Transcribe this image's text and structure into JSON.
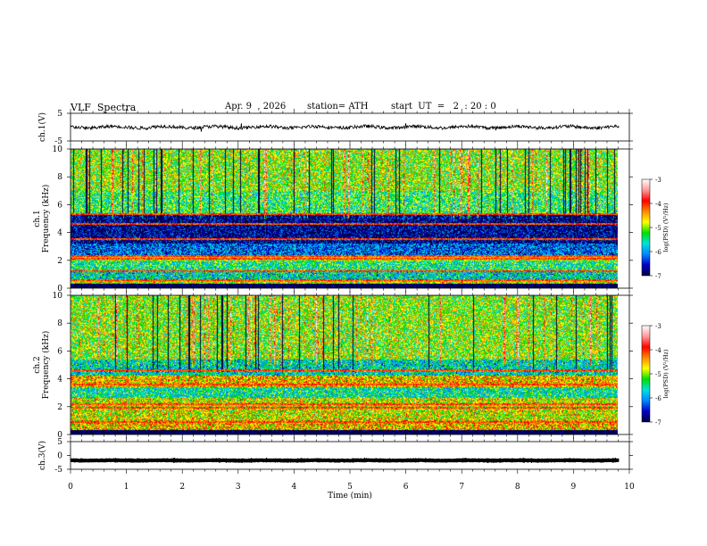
{
  "header": {
    "title": "VLF  Spectra",
    "date": "Apr. 9  , 2026",
    "station": "station= ATH",
    "start_ut": "start  UT  =   2  : 20 : 0"
  },
  "colorbar_scale": {
    "label": "log(PSD) (V²/Hz)",
    "ticks": [
      "-3",
      "-4",
      "-5",
      "-6",
      "-7"
    ],
    "colors": [
      "#ffffff",
      "#ff9a9a",
      "#ff0000",
      "#ff8800",
      "#ffff00",
      "#00e000",
      "#00e0e0",
      "#0088ff",
      "#0000c8",
      "#000040"
    ]
  },
  "chart_data": [
    {
      "type": "line",
      "name": "ch1-waveform",
      "ylabel": "ch.1(V)",
      "ylim": [
        -5,
        5
      ],
      "yticks": [
        "5",
        "-5"
      ],
      "xlim": [
        0,
        10
      ],
      "approx_mean": 0.0,
      "approx_amplitude": 0.6
    },
    {
      "type": "heatmap",
      "name": "ch1-spectrogram",
      "ylabel": "ch.1\nFrequency (kHz)",
      "ylabel_line1": "ch.1",
      "ylabel_line2": "Frequency (kHz)",
      "ylim": [
        0,
        10
      ],
      "yticks": [
        "0",
        "2",
        "4",
        "6",
        "8",
        "10"
      ],
      "xlim": [
        0,
        9.8
      ],
      "bands": [
        {
          "f0": 0.0,
          "f1": 0.3,
          "level": -7
        },
        {
          "f0": 0.3,
          "f1": 0.6,
          "level": -4.8
        },
        {
          "f0": 0.6,
          "f1": 1.2,
          "level": -5.6
        },
        {
          "f0": 1.2,
          "f1": 1.9,
          "level": -5.4
        },
        {
          "f0": 1.9,
          "f1": 2.4,
          "level": -5.0
        },
        {
          "f0": 2.4,
          "f1": 3.2,
          "level": -6.1
        },
        {
          "f0": 3.2,
          "f1": 5.3,
          "level": -6.6
        },
        {
          "f0": 5.3,
          "f1": 7.0,
          "level": -5.3
        },
        {
          "f0": 7.0,
          "f1": 10.0,
          "level": -5.0
        }
      ],
      "lines_khz": [
        0.6,
        1.2,
        2.1,
        2.3,
        3.5,
        4.6,
        5.3
      ]
    },
    {
      "type": "heatmap",
      "name": "ch2-spectrogram",
      "ylabel": "ch.2\nFrequency (kHz)",
      "ylabel_line1": "ch.2",
      "ylabel_line2": "Frequency (kHz)",
      "ylim": [
        0,
        10
      ],
      "yticks": [
        "0",
        "2",
        "4",
        "6",
        "8",
        "10"
      ],
      "xlim": [
        0,
        9.8
      ],
      "bands": [
        {
          "f0": 0.0,
          "f1": 0.3,
          "level": -7
        },
        {
          "f0": 0.3,
          "f1": 1.0,
          "level": -4.6
        },
        {
          "f0": 1.0,
          "f1": 2.6,
          "level": -4.8
        },
        {
          "f0": 2.6,
          "f1": 3.4,
          "level": -5.5
        },
        {
          "f0": 3.4,
          "f1": 4.2,
          "level": -4.6
        },
        {
          "f0": 4.2,
          "f1": 5.4,
          "level": -5.6
        },
        {
          "f0": 5.4,
          "f1": 10.0,
          "level": -5.0
        }
      ],
      "lines_khz": [
        0.9,
        1.9,
        2.2,
        3.6,
        4.6
      ]
    },
    {
      "type": "line",
      "name": "ch3-waveform",
      "ylabel": "ch.3(V)",
      "ylim": [
        -5,
        5
      ],
      "yticks": [
        "5",
        "0",
        "-5"
      ],
      "xlim": [
        0,
        10
      ],
      "approx_mean": -1.8,
      "approx_amplitude": 0.1
    }
  ],
  "time_axis": {
    "label": "Time  (min)",
    "ticks": [
      "0",
      "1",
      "2",
      "3",
      "4",
      "5",
      "6",
      "7",
      "8",
      "9",
      "10"
    ],
    "range": [
      0,
      10
    ]
  }
}
